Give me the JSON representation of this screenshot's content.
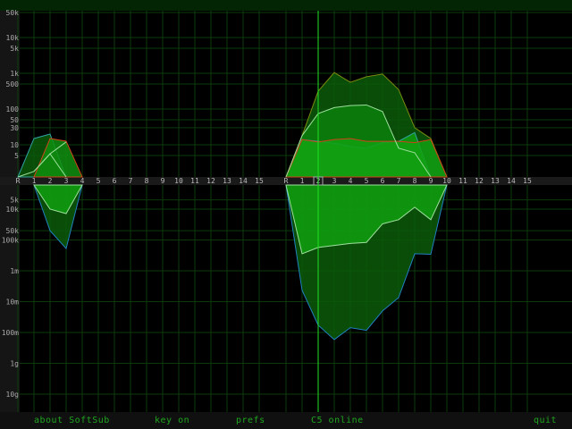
{
  "colors": {
    "grid": "#0d3a0d",
    "cursor": "#22e022",
    "fill_dark": "#0a5a0a",
    "fill_light": "#10a010",
    "menu_text": "#1fa51f",
    "envelope": "#7a8a10",
    "red": "#d0401a",
    "cyan": "#30a0a0",
    "blue": "#2080c0",
    "lightline": "#9de09d"
  },
  "upper_axis": {
    "scale": "log",
    "ticks": [
      "50k",
      "10k",
      "5k",
      "1k",
      "500",
      "100",
      "50",
      "30",
      "10",
      "5"
    ],
    "tick_values": [
      50000,
      10000,
      5000,
      1000,
      500,
      100,
      50,
      30,
      10,
      5
    ]
  },
  "lower_axis": {
    "scale": "log",
    "ticks": [
      "5k",
      "10k",
      "50k",
      "100k",
      "1m",
      "10m",
      "100m",
      "1g",
      "10g"
    ],
    "tick_values": [
      5000.0,
      10000.0,
      50000.0,
      100000.0,
      1000000.0,
      10000000.0,
      100000000.0,
      1000000000.0,
      10000000000.0
    ]
  },
  "channel_labels": [
    "R",
    "1",
    "2",
    "3",
    "4",
    "5",
    "6",
    "7",
    "8",
    "9",
    "10",
    "11",
    "12",
    "13",
    "14",
    "15"
  ],
  "selected_channel": "2",
  "groups": [
    {
      "upper": {
        "cyan": [
          1,
          15,
          20,
          1,
          null
        ],
        "red": [
          null,
          1,
          15,
          12.6,
          1
        ],
        "light_a": [
          1,
          1.8,
          5.6,
          12,
          null
        ],
        "light_b": [
          null,
          1.8,
          5.6,
          1,
          null
        ]
      },
      "lower": {
        "light": [
          null,
          1600,
          10000,
          14000,
          1600
        ],
        "blue": [
          null,
          1600,
          50000,
          190000,
          1600
        ]
      }
    },
    {
      "upper": {
        "envelope": [
          1,
          18,
          316,
          1050,
          560,
          800,
          950,
          350,
          30,
          15,
          1
        ],
        "light": [
          1,
          18,
          75,
          110,
          125,
          130,
          85,
          8,
          6,
          1,
          null
        ],
        "cyan": [
          1,
          14,
          12.5,
          11,
          9,
          8,
          11.5,
          12.5,
          22,
          1,
          null
        ],
        "red": [
          1,
          14,
          12,
          14,
          15,
          12.5,
          12.5,
          12.5,
          11.5,
          14,
          1
        ]
      },
      "lower": {
        "light": [
          1600,
          280000,
          175000,
          150000,
          130000,
          120000,
          30000,
          22000,
          8700,
          22000,
          1600
        ],
        "blue": [
          1600,
          4300000.0,
          58000000.0,
          170000000.0,
          70000000.0,
          85000000.0,
          20000000.0,
          7400000.0,
          280000.0,
          290000.0,
          1600
        ]
      }
    }
  ],
  "menu": {
    "about": "about SoftSub",
    "key": "key on",
    "prefs": "prefs",
    "status": "C5 online",
    "quit": "quit"
  }
}
